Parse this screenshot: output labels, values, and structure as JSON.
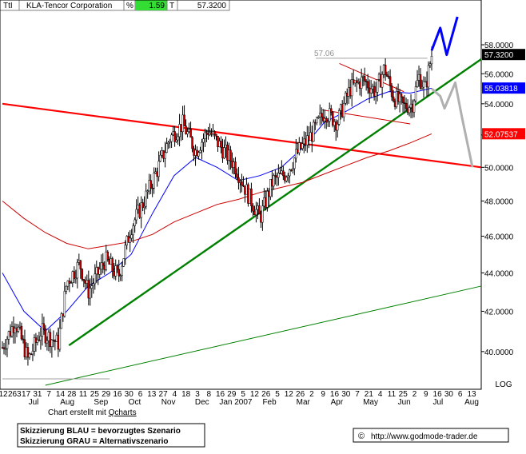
{
  "header": {
    "symbol": "TtI",
    "company": "KLA-Tencor Corporation",
    "pct_label": "%",
    "pct_value": "1.59",
    "t_label": "T",
    "price": "57.3200"
  },
  "credit": {
    "prefix": "Chart erstellt mit ",
    "tool": "Qcharts"
  },
  "legend": {
    "line1": "Skizzierung BLAU = bevorzugtes Szenario",
    "line2": "Skizzierung GRAU = Alternativszenario"
  },
  "watermark": {
    "symbol": "©",
    "url": "http://www.godmode-trader.de"
  },
  "colors": {
    "price_bar": "#000000",
    "down_body": "#c00000",
    "sma_fast": "#0000ff",
    "sma_slow": "#cc0000",
    "uptrend": "#008000",
    "resistance": "#ff0000",
    "scenario_blue": "#0000ff",
    "scenario_gray": "#b0b0b0",
    "label_price_bg": "#000000",
    "label_blue_bg": "#0000ff",
    "label_red_bg": "#ff0000",
    "header_green": "#33dd33"
  },
  "chart_data": {
    "type": "candlestick",
    "yscale": "log",
    "ylim": [
      38.4,
      60.0
    ],
    "y_ticks": [
      40,
      42,
      44,
      46,
      48,
      50,
      52,
      54,
      56,
      58
    ],
    "y_tick_labels": [
      "40.0000",
      "42.0000",
      "44.0000",
      "46.0000",
      "48.0000",
      "50.0000",
      "52.0000",
      "54.0000",
      "56.0000",
      "58.0000"
    ],
    "scale_label": "LOG",
    "x_day_labels": [
      "12",
      "263",
      "17",
      "31",
      "7",
      "14",
      "28",
      "11",
      "25",
      "29",
      "16",
      "30",
      "6",
      "13",
      "27",
      "4",
      "18",
      "3",
      "8",
      "16",
      "29",
      "5",
      "12",
      "26",
      "5",
      "12",
      "26",
      "2",
      "9",
      "16",
      "30",
      "7",
      "21",
      "4",
      "11",
      "25",
      "2",
      "9",
      "16",
      "30",
      "6",
      "13"
    ],
    "x_month_labels": [
      "Jul",
      "Aug",
      "Sep",
      "Oct",
      "Nov",
      "Dec",
      "Jan 2007",
      "Feb",
      "Mar",
      "Apr",
      "May",
      "Jun",
      "Jul",
      "Aug"
    ],
    "price_annotation": "57.06",
    "current_price_label": "57.3200",
    "sma_fast_label": "55.03818",
    "sma_slow_label": "52.07537",
    "resistance_label": "50.0000",
    "trend": [
      {
        "x": 0.0,
        "v": 40.2
      },
      {
        "x": 0.03,
        "v": 41.5
      },
      {
        "x": 0.06,
        "v": 39.6
      },
      {
        "x": 0.09,
        "v": 41.0
      },
      {
        "x": 0.13,
        "v": 40.4
      },
      {
        "x": 0.15,
        "v": 43.5
      },
      {
        "x": 0.18,
        "v": 44.5
      },
      {
        "x": 0.2,
        "v": 43.0
      },
      {
        "x": 0.24,
        "v": 44.7
      },
      {
        "x": 0.27,
        "v": 43.8
      },
      {
        "x": 0.3,
        "v": 46.5
      },
      {
        "x": 0.33,
        "v": 48.0
      },
      {
        "x": 0.36,
        "v": 49.8
      },
      {
        "x": 0.39,
        "v": 51.8
      },
      {
        "x": 0.42,
        "v": 52.7
      },
      {
        "x": 0.45,
        "v": 51.0
      },
      {
        "x": 0.48,
        "v": 52.3
      },
      {
        "x": 0.51,
        "v": 51.2
      },
      {
        "x": 0.54,
        "v": 50.2
      },
      {
        "x": 0.57,
        "v": 48.5
      },
      {
        "x": 0.6,
        "v": 47.0
      },
      {
        "x": 0.63,
        "v": 49.2
      },
      {
        "x": 0.66,
        "v": 49.6
      },
      {
        "x": 0.69,
        "v": 51.0
      },
      {
        "x": 0.72,
        "v": 52.0
      },
      {
        "x": 0.75,
        "v": 53.5
      },
      {
        "x": 0.78,
        "v": 52.8
      },
      {
        "x": 0.81,
        "v": 55.0
      },
      {
        "x": 0.84,
        "v": 55.6
      },
      {
        "x": 0.87,
        "v": 54.8
      },
      {
        "x": 0.89,
        "v": 56.4
      },
      {
        "x": 0.91,
        "v": 54.5
      },
      {
        "x": 0.935,
        "v": 53.8
      },
      {
        "x": 0.955,
        "v": 54.0
      },
      {
        "x": 0.97,
        "v": 55.8
      },
      {
        "x": 0.985,
        "v": 55.0
      },
      {
        "x": 1.0,
        "v": 57.3
      }
    ],
    "sma_fast": [
      {
        "x": 0.0,
        "v": 44.0
      },
      {
        "x": 0.05,
        "v": 42.0
      },
      {
        "x": 0.1,
        "v": 41.0
      },
      {
        "x": 0.15,
        "v": 42.0
      },
      {
        "x": 0.2,
        "v": 43.3
      },
      {
        "x": 0.25,
        "v": 44.0
      },
      {
        "x": 0.3,
        "v": 45.0
      },
      {
        "x": 0.35,
        "v": 47.3
      },
      {
        "x": 0.4,
        "v": 49.5
      },
      {
        "x": 0.45,
        "v": 50.6
      },
      {
        "x": 0.5,
        "v": 50.0
      },
      {
        "x": 0.55,
        "v": 49.2
      },
      {
        "x": 0.6,
        "v": 49.5
      },
      {
        "x": 0.65,
        "v": 50.0
      },
      {
        "x": 0.7,
        "v": 51.2
      },
      {
        "x": 0.75,
        "v": 52.8
      },
      {
        "x": 0.8,
        "v": 53.5
      },
      {
        "x": 0.85,
        "v": 54.3
      },
      {
        "x": 0.9,
        "v": 54.8
      },
      {
        "x": 0.95,
        "v": 54.7
      },
      {
        "x": 1.0,
        "v": 55.03
      }
    ],
    "sma_slow": [
      {
        "x": 0.0,
        "v": 48.0
      },
      {
        "x": 0.05,
        "v": 47.0
      },
      {
        "x": 0.1,
        "v": 46.2
      },
      {
        "x": 0.15,
        "v": 45.6
      },
      {
        "x": 0.2,
        "v": 45.3
      },
      {
        "x": 0.25,
        "v": 45.5
      },
      {
        "x": 0.3,
        "v": 45.7
      },
      {
        "x": 0.35,
        "v": 46.1
      },
      {
        "x": 0.4,
        "v": 46.8
      },
      {
        "x": 0.45,
        "v": 47.3
      },
      {
        "x": 0.5,
        "v": 47.8
      },
      {
        "x": 0.55,
        "v": 48.1
      },
      {
        "x": 0.6,
        "v": 48.5
      },
      {
        "x": 0.65,
        "v": 48.8
      },
      {
        "x": 0.7,
        "v": 49.1
      },
      {
        "x": 0.75,
        "v": 49.6
      },
      {
        "x": 0.8,
        "v": 50.1
      },
      {
        "x": 0.85,
        "v": 50.6
      },
      {
        "x": 0.9,
        "v": 51.0
      },
      {
        "x": 0.95,
        "v": 51.5
      },
      {
        "x": 1.0,
        "v": 52.07
      }
    ],
    "lines": {
      "resistance": [
        {
          "x": 0.0,
          "v": 54.0
        },
        {
          "x": 1.124,
          "v": 50.0
        }
      ],
      "uptrend": [
        {
          "x": 0.155,
          "v": 40.3
        },
        {
          "x": 1.124,
          "v": 57.0
        }
      ],
      "long_trend": [
        {
          "x": 0.1,
          "v": 38.4
        },
        {
          "x": 1.124,
          "v": 43.3
        }
      ],
      "low_hline": [
        {
          "x": 0.0,
          "v": 38.7
        },
        {
          "x": 0.25,
          "v": 38.7
        }
      ],
      "high_hline": [
        {
          "x": 0.73,
          "v": 57.06
        },
        {
          "x": 0.99,
          "v": 57.06
        }
      ],
      "channel_upper": [
        {
          "x": 0.785,
          "v": 56.7
        },
        {
          "x": 0.935,
          "v": 54.8
        }
      ],
      "channel_lower": [
        {
          "x": 0.745,
          "v": 53.6
        },
        {
          "x": 0.95,
          "v": 52.7
        }
      ]
    },
    "scenario_blue": [
      {
        "x": 1.0,
        "v": 57.6
      },
      {
        "x": 1.02,
        "v": 59.2
      },
      {
        "x": 1.035,
        "v": 57.3
      },
      {
        "x": 1.06,
        "v": 60.0
      }
    ],
    "scenario_gray": [
      {
        "x": 1.0,
        "v": 55.0
      },
      {
        "x": 1.02,
        "v": 54.5
      },
      {
        "x": 1.03,
        "v": 53.7
      },
      {
        "x": 1.055,
        "v": 55.4
      },
      {
        "x": 1.07,
        "v": 53.2
      },
      {
        "x": 1.095,
        "v": 50.0
      }
    ]
  }
}
